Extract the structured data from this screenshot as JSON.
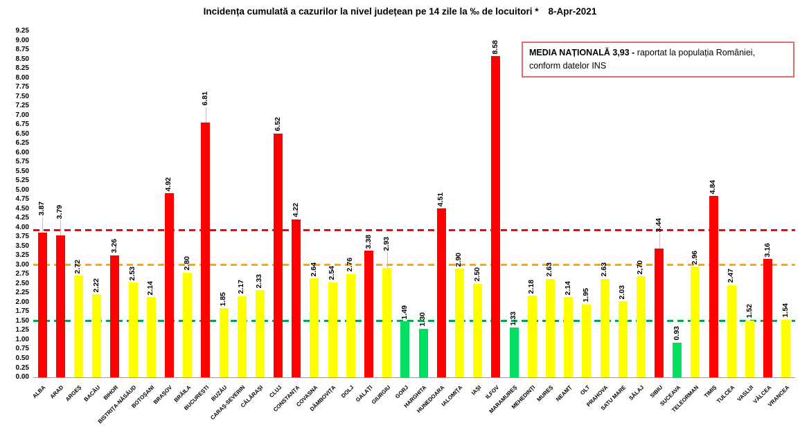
{
  "chart_data": {
    "type": "bar",
    "title": "Incidența cumulată a cazurilor la nivel județean pe 14 zile la ‰ de locuitori *",
    "date": "8-Apr-2021",
    "xlabel": "",
    "ylabel": "",
    "ylim": [
      0,
      9.25
    ],
    "ytick_step": 0.25,
    "grid": false,
    "legend_position": "top-right",
    "categories": [
      "ALBA",
      "ARAD",
      "ARGEȘ",
      "BACĂU",
      "BIHOR",
      "BISTRIȚA-NĂSĂUD",
      "BOTOȘANI",
      "BRAȘOV",
      "BRĂILA",
      "BUCUREȘTI",
      "BUZĂU",
      "CARAȘ-SEVERIN",
      "CĂLĂRAȘI",
      "CLUJ",
      "CONSTANȚA",
      "COVASNA",
      "DÂMBOVIȚA",
      "DOLJ",
      "GALAȚI",
      "GIURGIU",
      "GORJ",
      "HARGHITA",
      "HUNEDOARA",
      "IALOMIȚA",
      "IAȘI",
      "ILFOV",
      "MARAMUREȘ",
      "MEHEDINȚI",
      "MUREȘ",
      "NEAMȚ",
      "OLT",
      "PRAHOVA",
      "SATU MARE",
      "SĂLAJ",
      "SIBIU",
      "SUCEAVA",
      "TELEORMAN",
      "TIMIȘ",
      "TULCEA",
      "VASLUI",
      "VÂLCEA",
      "VRANCEA"
    ],
    "values": [
      3.87,
      3.79,
      2.72,
      2.22,
      3.26,
      2.53,
      2.14,
      4.92,
      2.8,
      6.81,
      1.85,
      2.17,
      2.33,
      6.52,
      4.22,
      2.64,
      2.54,
      2.76,
      3.38,
      2.93,
      1.49,
      1.3,
      4.51,
      2.9,
      2.5,
      8.58,
      1.33,
      2.18,
      2.63,
      2.14,
      1.95,
      2.63,
      2.03,
      2.7,
      3.44,
      0.93,
      2.96,
      4.84,
      2.47,
      1.52,
      3.16,
      1.54
    ],
    "value_labels": [
      "3.87",
      "3.79",
      "2.72",
      "2.22",
      "3.26",
      "2.53",
      "2.14",
      "4.92",
      "2.80",
      "6.81",
      "1.85",
      "2.17",
      "2.33",
      "6.52",
      "4.22",
      "2.64",
      "2.54",
      "2.76",
      "3.38",
      "2.93",
      "1.49",
      "1.30",
      "4.51",
      "2.90",
      "2.50",
      "8.58",
      "1.33",
      "2.18",
      "2.63",
      "2.14",
      "1.95",
      "2.63",
      "2.03",
      "2,70",
      "3.44",
      "0.93",
      "2.96",
      "4.84",
      "2.47",
      "1.52",
      "3.16",
      "1.54"
    ],
    "palette": {
      "red": "#ff0000",
      "yellow": "#ffff00",
      "green": "#00df5f"
    },
    "color_thresholds": {
      "red_min": 3.0,
      "yellow_min": 1.5
    },
    "reference_lines": [
      {
        "name": "media-nationala",
        "value": 3.93,
        "color": "#ff0000"
      },
      {
        "name": "prag-3.00",
        "value": 3.0,
        "color": "#ffa800"
      },
      {
        "name": "prag-1.50",
        "value": 1.5,
        "color": "#00a550"
      }
    ],
    "label_leaders": [
      "ALBA",
      "ARAD",
      "BUCUREȘTI",
      "GIURGIU",
      "SIBIU"
    ]
  },
  "annotation": {
    "bold_text": "MEDIA NAȚIONALĂ  3,93 -",
    "regular_text": " raportat la populația României, conform datelor INS"
  }
}
